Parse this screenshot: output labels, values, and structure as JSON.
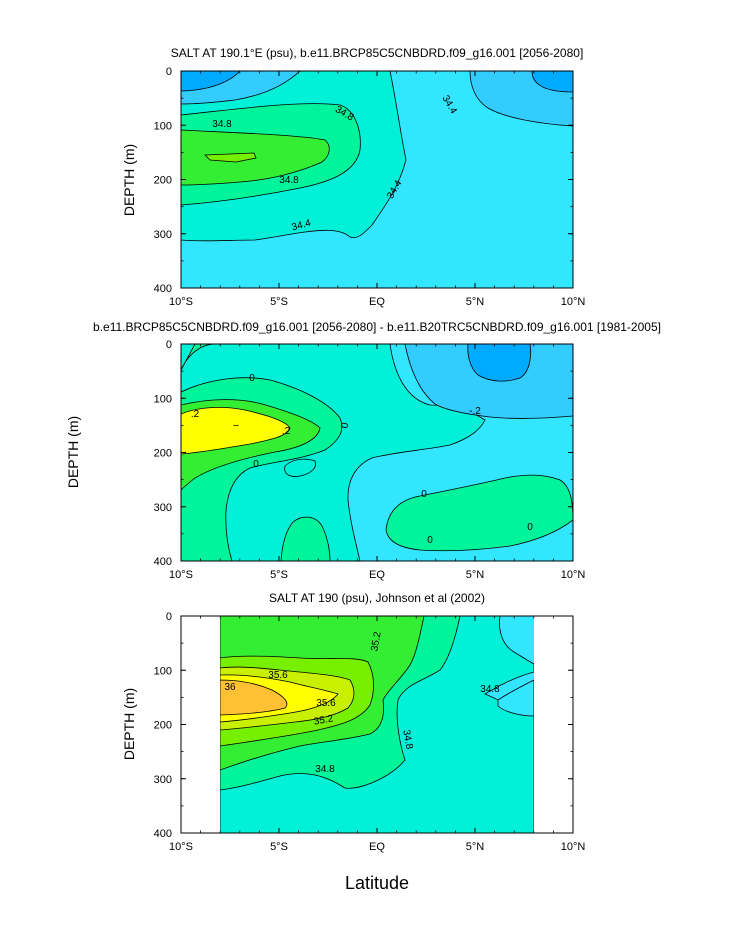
{
  "chart_data": [
    {
      "type": "heatmap",
      "title": "SALT AT 190.1°E (psu), b.e11.BRCP85C5CNBDRD.f09_g16.001 [2056-2080]",
      "ylabel": "DEPTH (m)",
      "xlim": [
        -10,
        10
      ],
      "ylim": [
        400,
        0
      ],
      "xticks": [
        "10°S",
        "5°S",
        "EQ",
        "5°N",
        "10°N"
      ],
      "yticks": [
        "0",
        "100",
        "200",
        "300",
        "400"
      ],
      "contour_labels": [
        "34.8",
        "34.8",
        "34.4",
        "34.8",
        "34.4",
        "34.4"
      ],
      "regions": [
        {
          "name": "salt < 34.0",
          "color": "#00aaff"
        },
        {
          "name": "34.0 – 34.4",
          "color": "#33ccff"
        },
        {
          "name": "34.4 – 34.6",
          "color": "#33e6ff"
        },
        {
          "name": "34.6 – 34.8",
          "color": "#00f0d8"
        },
        {
          "name": "34.8 – 35.0",
          "color": "#00f59a"
        },
        {
          "name": "35.0 – 35.2",
          "color": "#33ee33"
        }
      ]
    },
    {
      "type": "heatmap",
      "title": "b.e11.BRCP85C5CNBDRD.f09_g16.001 [2056-2080] - b.e11.B20TRC5CNBDRD.f09_g16.001 [1981-2005]",
      "ylabel": "DEPTH (m)",
      "xlim": [
        -10,
        10
      ],
      "ylim": [
        400,
        0
      ],
      "xticks": [
        "10°S",
        "5°S",
        "EQ",
        "5°N",
        "10°N"
      ],
      "yticks": [
        "0",
        "100",
        "200",
        "300",
        "400"
      ],
      "contour_labels": [
        "0",
        ".2",
        "–",
        ".2",
        "0",
        "0",
        "-.2",
        "0",
        "0",
        "0"
      ],
      "regions": [
        {
          "name": "< -0.4",
          "color": "#00aaff"
        },
        {
          "name": "-0.4 – -0.2",
          "color": "#33ccff"
        },
        {
          "name": "-0.2 – 0",
          "color": "#33e6ff"
        },
        {
          "name": "0 – 0.1",
          "color": "#00f0d8"
        },
        {
          "name": "0.1 – 0.2",
          "color": "#00f59a"
        },
        {
          "name": "0.2 – 0.4",
          "color": "#33ee33"
        },
        {
          "name": "> 0.4",
          "color": "#ffff00"
        }
      ]
    },
    {
      "type": "heatmap",
      "title": "SALT AT 190 (psu), Johnson et al (2002)",
      "ylabel": "DEPTH (m)",
      "xlabel": "Latitude",
      "xlim": [
        -10,
        10
      ],
      "ylim": [
        400,
        0
      ],
      "data_xrange": [
        -8,
        8
      ],
      "xticks": [
        "10°S",
        "5°S",
        "EQ",
        "5°N",
        "10°N"
      ],
      "yticks": [
        "0",
        "100",
        "200",
        "300",
        "400"
      ],
      "contour_labels": [
        "35.2",
        "35.6",
        "36",
        "35.6",
        "35.2",
        "34.8",
        "34.8",
        "34.8"
      ],
      "regions": [
        {
          "name": "34.6 – 34.8",
          "color": "#33e6ff"
        },
        {
          "name": "34.8 – 35.0",
          "color": "#00f0d8"
        },
        {
          "name": "35.0 – 35.2",
          "color": "#00f59a"
        },
        {
          "name": "35.2 – 35.4",
          "color": "#33ee33"
        },
        {
          "name": "35.4 – 35.6",
          "color": "#77f000"
        },
        {
          "name": "35.6 – 35.8",
          "color": "#c8f000"
        },
        {
          "name": "35.8 – 36.0",
          "color": "#ffff00"
        },
        {
          "name": "> 36.0",
          "color": "#ffc033"
        }
      ]
    }
  ]
}
